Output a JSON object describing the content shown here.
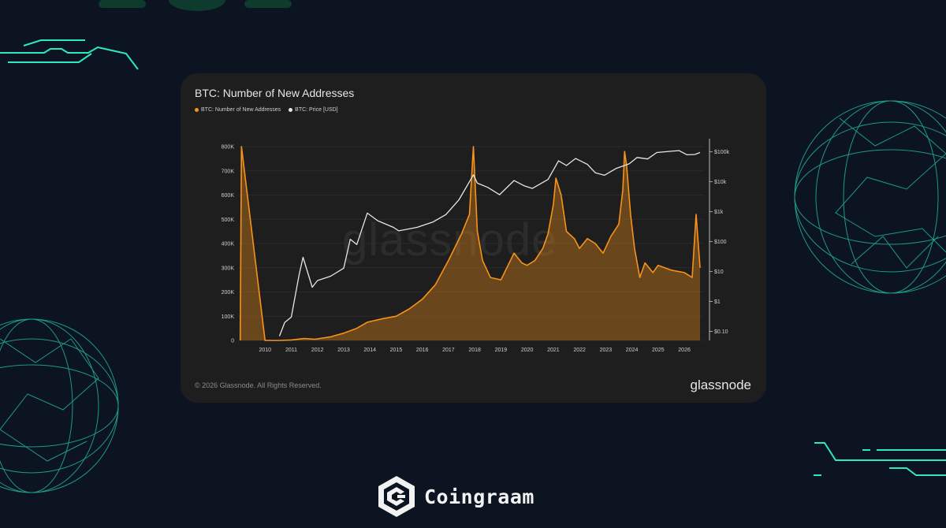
{
  "chart_data": {
    "type": "line",
    "title": "BTC: Number of New Addresses",
    "legend": [
      {
        "name": "BTC: Number of New Addresses",
        "color": "#f7931a"
      },
      {
        "name": "BTC: Price [USD]",
        "color": "#e6e6e6"
      }
    ],
    "legend_position": "top-left",
    "x_ticks": [
      "2010",
      "2011",
      "2012",
      "2013",
      "2014",
      "2015",
      "2016",
      "2017",
      "2018",
      "2019",
      "2020",
      "2021",
      "2022",
      "2023",
      "2024",
      "2025",
      "2026"
    ],
    "y_left": {
      "ticks": [
        0,
        100000,
        200000,
        300000,
        400000,
        500000,
        600000,
        700000,
        800000
      ],
      "tick_labels": [
        "0",
        "100K",
        "200K",
        "300K",
        "400K",
        "500K",
        "600K",
        "700K",
        "800K"
      ],
      "ylim": [
        0,
        800000
      ]
    },
    "y_right": {
      "scale": "log",
      "ticks": [
        0.1,
        1,
        10,
        100,
        1000,
        10000,
        100000
      ],
      "tick_labels": [
        "$0.10",
        "$1",
        "$10",
        "$100",
        "$1k",
        "$10k",
        "$100k"
      ],
      "ylim": [
        0.05,
        150000
      ]
    },
    "grid": true,
    "series": [
      {
        "name": "BTC: Number of New Addresses",
        "axis": "left",
        "color": "#f7931a",
        "x": [
          2009.05,
          2009.1,
          2010.0,
          2010.5,
          2011.0,
          2011.5,
          2011.9,
          2012.5,
          2013.0,
          2013.5,
          2013.9,
          2014.5,
          2015.0,
          2015.5,
          2016.0,
          2016.5,
          2017.0,
          2017.5,
          2017.8,
          2017.95,
          2018.1,
          2018.3,
          2018.6,
          2019.0,
          2019.5,
          2019.8,
          2020.0,
          2020.3,
          2020.6,
          2020.8,
          2021.0,
          2021.1,
          2021.3,
          2021.5,
          2021.8,
          2022.0,
          2022.3,
          2022.6,
          2022.9,
          2023.2,
          2023.5,
          2023.65,
          2023.72,
          2023.8,
          2023.95,
          2024.1,
          2024.3,
          2024.5,
          2024.8,
          2025.0,
          2025.5,
          2026.0,
          2026.3,
          2026.45,
          2026.6
        ],
        "values": [
          0,
          800000,
          0,
          0,
          2000,
          8000,
          5000,
          15000,
          30000,
          50000,
          75000,
          90000,
          100000,
          130000,
          170000,
          230000,
          330000,
          440000,
          520000,
          800000,
          450000,
          330000,
          260000,
          250000,
          360000,
          320000,
          310000,
          330000,
          380000,
          440000,
          560000,
          670000,
          600000,
          450000,
          420000,
          380000,
          420000,
          400000,
          360000,
          430000,
          480000,
          620000,
          780000,
          720000,
          520000,
          380000,
          260000,
          320000,
          280000,
          310000,
          290000,
          280000,
          260000,
          520000,
          300000
        ]
      },
      {
        "name": "BTC: Price [USD]",
        "axis": "right",
        "color": "#e6e6e6",
        "x": [
          2010.55,
          2010.75,
          2011.0,
          2011.3,
          2011.45,
          2011.8,
          2012.0,
          2012.5,
          2013.0,
          2013.25,
          2013.5,
          2013.9,
          2014.3,
          2014.9,
          2015.1,
          2015.8,
          2016.4,
          2016.9,
          2017.4,
          2017.95,
          2018.1,
          2018.5,
          2018.95,
          2019.5,
          2019.9,
          2020.2,
          2020.8,
          2021.2,
          2021.5,
          2021.85,
          2022.3,
          2022.6,
          2022.95,
          2023.4,
          2023.9,
          2024.2,
          2024.6,
          2024.95,
          2025.5,
          2025.8,
          2026.1,
          2026.4,
          2026.6
        ],
        "values": [
          0.07,
          0.2,
          0.3,
          8,
          30,
          3,
          5,
          7,
          13,
          120,
          80,
          900,
          500,
          300,
          230,
          300,
          450,
          800,
          2500,
          17000,
          9000,
          6500,
          3700,
          11000,
          7300,
          6000,
          12000,
          50000,
          35000,
          60000,
          38000,
          20000,
          16500,
          28000,
          40000,
          65000,
          58000,
          95000,
          105000,
          110000,
          80000,
          82000,
          95000
        ]
      }
    ]
  },
  "copyright": "© 2026 Glassnode. All Rights Reserved.",
  "watermark": "glassnode",
  "source_logo": "glassnode",
  "brand": {
    "name": "Coingraam",
    "logo_icon": "coingraam-hex-logo-icon"
  },
  "colors": {
    "page_bg": "#0b1420",
    "card_bg": "#1e1e1e",
    "accent": "#2ee8c4",
    "orange": "#f7931a"
  }
}
